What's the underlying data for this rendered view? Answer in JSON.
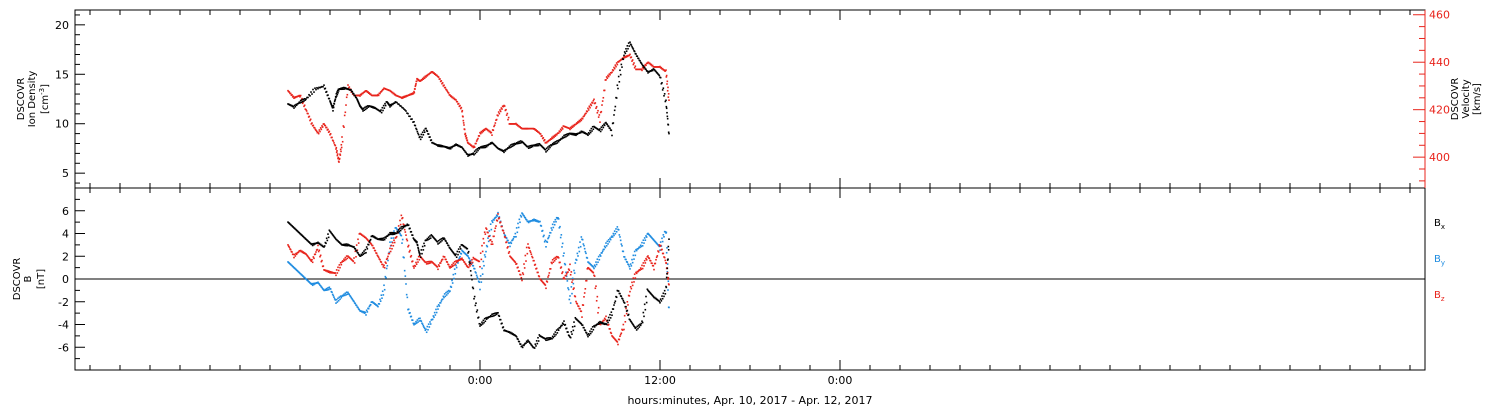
{
  "xlabel": "hours:minutes, Apr. 10, 2017 - Apr. 12, 2017",
  "colors": {
    "black": "#000000",
    "red": "#e8241c",
    "blue": "#1f8ce0"
  },
  "chart_data": [
    {
      "type": "scatter",
      "panel": "top",
      "x_unit": "hours from 2017-04-11 00:00",
      "xlim": [
        -27,
        63
      ],
      "x_ticks": [
        {
          "x": 0,
          "label": "0:00"
        },
        {
          "x": 12,
          "label": "12:00"
        },
        {
          "x": 24,
          "label": "0:00"
        }
      ],
      "ylabel": {
        "lines": [
          "DSCOVR",
          "Ion Density"
        ],
        "unit": "[cm",
        "unit_sup": "-3",
        "unit_end": "]"
      },
      "ylim": [
        3.5,
        21.5
      ],
      "y_ticks": [
        5,
        10,
        15,
        20
      ],
      "y2label": {
        "lines": [
          "DSCOVR",
          "Velocity",
          "[km/s]"
        ]
      },
      "y2lim": [
        387,
        462
      ],
      "y2_ticks": [
        400,
        420,
        440,
        460
      ],
      "series": [
        {
          "name": "Ion Density",
          "axis": "left",
          "color": "#000000",
          "x": [
            -12.8,
            -12.4,
            -12,
            -11.6,
            -11,
            -10.4,
            -10,
            -9.8,
            -9.6,
            -9.4,
            -9,
            -8.6,
            -8.2,
            -8,
            -7.8,
            -7.4,
            -7,
            -6.6,
            -6.2,
            -6,
            -5.6,
            -5,
            -4.4,
            -4,
            -3.6,
            -3.2,
            -2.8,
            -2.4,
            -2,
            -1.6,
            -1.2,
            -0.8,
            -0.4,
            0,
            0.4,
            0.8,
            1.2,
            1.6,
            2,
            2.4,
            2.8,
            3.2,
            3.6,
            4,
            4.4,
            4.8,
            5.2,
            5.6,
            6,
            6.4,
            6.8,
            7.2,
            7.6,
            8,
            8.4,
            8.8,
            9.2,
            9.6,
            10,
            10.4,
            10.8,
            11.2,
            11.6,
            12,
            12.4,
            12.6
          ],
          "y": [
            12,
            11.7,
            12.2,
            12.5,
            13.5,
            13.8,
            12.3,
            11.5,
            12.8,
            13.5,
            13.6,
            13.4,
            12.5,
            11.8,
            11.4,
            11.8,
            11.6,
            11.2,
            12.2,
            11.8,
            12.2,
            11.4,
            10.1,
            8.5,
            9.5,
            8.1,
            7.8,
            7.7,
            7.5,
            7.9,
            7.6,
            6.8,
            7,
            7.6,
            7.7,
            8.1,
            7.5,
            7.2,
            7.7,
            8,
            8.2,
            7.6,
            7.8,
            7.9,
            7.3,
            7.9,
            8.2,
            8.7,
            9,
            8.9,
            9.2,
            8.9,
            9.7,
            9.3,
            10.1,
            9.2,
            14,
            17,
            18.2,
            17,
            16,
            15.2,
            15.5,
            14.8,
            12.2,
            9
          ]
        },
        {
          "name": "Velocity",
          "axis": "right",
          "color": "#e8241c",
          "x": [
            -12.8,
            -12.4,
            -12,
            -11.6,
            -11.2,
            -10.8,
            -10.4,
            -10,
            -9.6,
            -9.4,
            -9.2,
            -8.8,
            -8.4,
            -8,
            -7.6,
            -7.2,
            -6.8,
            -6.4,
            -6,
            -5.6,
            -5.2,
            -4.8,
            -4.4,
            -4.2,
            -4,
            -3.6,
            -3.2,
            -2.8,
            -2.4,
            -2,
            -1.6,
            -1.2,
            -1,
            -0.8,
            -0.4,
            0,
            0.4,
            0.8,
            1.2,
            1.6,
            2,
            2.4,
            2.8,
            3.2,
            3.6,
            4,
            4.4,
            4.8,
            5.2,
            5.6,
            6,
            6.4,
            6.8,
            7.2,
            7.6,
            8,
            8.4,
            8.8,
            9.2,
            9.6,
            10,
            10.4,
            10.8,
            11.2,
            11.6,
            12,
            12.4,
            12.6
          ],
          "y": [
            428,
            425,
            426,
            420,
            414,
            410,
            414,
            410,
            404,
            398,
            406,
            430,
            426,
            426,
            428,
            426,
            426,
            429,
            428,
            426,
            425,
            426,
            427,
            433,
            432,
            434,
            436,
            434,
            430,
            426,
            424,
            420,
            410,
            406,
            404,
            410,
            412,
            410,
            418,
            422,
            414,
            414,
            412,
            412,
            412,
            410,
            406,
            408,
            410,
            413,
            412,
            414,
            416,
            420,
            424,
            416,
            433,
            436,
            440,
            442,
            443,
            437,
            437,
            440,
            438,
            438,
            436,
            424
          ]
        }
      ]
    },
    {
      "type": "scatter",
      "panel": "bottom",
      "x_unit": "hours from 2017-04-11 00:00",
      "xlim": [
        -27,
        63
      ],
      "ylabel": {
        "lines": [
          "DSCOVR",
          "B"
        ],
        "unit": "[nT]"
      },
      "ylim": [
        -8,
        8
      ],
      "y_ticks": [
        -6,
        -4,
        -2,
        0,
        2,
        4,
        6
      ],
      "zero_line": true,
      "legend": [
        {
          "base": "B",
          "sub": "x",
          "color": "#000000"
        },
        {
          "base": "B",
          "sub": "y",
          "color": "#1f8ce0"
        },
        {
          "base": "B",
          "sub": "z",
          "color": "#e8241c"
        }
      ],
      "series": [
        {
          "name": "Bx",
          "color": "#000000",
          "x": [
            -12.8,
            -12.4,
            -12,
            -11.6,
            -11.2,
            -10.8,
            -10.4,
            -10,
            -9.6,
            -9.2,
            -8.8,
            -8.4,
            -8,
            -7.6,
            -7.2,
            -6.8,
            -6.4,
            -6,
            -5.6,
            -5.2,
            -4.8,
            -4.4,
            -4.2,
            -4,
            -3.6,
            -3.2,
            -2.8,
            -2.4,
            -2,
            -1.6,
            -1.2,
            -0.8,
            -0.4,
            0,
            0.4,
            0.8,
            1.2,
            1.6,
            2,
            2.4,
            2.8,
            3.2,
            3.6,
            4,
            4.4,
            4.8,
            5.2,
            5.6,
            6,
            6.4,
            6.8,
            7.2,
            7.6,
            8,
            8.4,
            8.8,
            9.2,
            9.6,
            10,
            10.4,
            10.8,
            11.2,
            11.6,
            12,
            12.4,
            12.6
          ],
          "y": [
            5,
            4.5,
            4,
            3.5,
            3,
            3.2,
            2.8,
            4.2,
            3.5,
            3,
            3,
            2.8,
            2,
            2.5,
            3.8,
            3.5,
            3.5,
            4,
            4,
            4.5,
            4.8,
            3.5,
            3.2,
            2,
            3.4,
            3.8,
            3.2,
            3.6,
            2.7,
            2,
            3,
            2.6,
            -1.5,
            -4.1,
            -3.5,
            -3.2,
            -3,
            -4.5,
            -4.7,
            -5,
            -6,
            -5.4,
            -6.1,
            -5,
            -5.3,
            -5.2,
            -4.5,
            -3.8,
            -5.2,
            -3.5,
            -4,
            -5,
            -4.2,
            -3.8,
            -4,
            -3,
            -1,
            -2,
            -3.6,
            -4.4,
            -3.9,
            -1,
            -1.6,
            -2,
            -1,
            3.5
          ]
        },
        {
          "name": "By",
          "color": "#1f8ce0",
          "x": [
            -12.8,
            -12.4,
            -12,
            -11.6,
            -11.2,
            -10.8,
            -10.4,
            -10,
            -9.6,
            -9.2,
            -8.8,
            -8.4,
            -8,
            -7.6,
            -7.2,
            -6.8,
            -6.4,
            -6,
            -5.6,
            -5.2,
            -4.8,
            -4.4,
            -4,
            -3.6,
            -3.2,
            -2.8,
            -2.4,
            -2,
            -1.6,
            -1.2,
            -0.8,
            -0.4,
            0,
            0.4,
            0.8,
            1.2,
            1.6,
            2,
            2.4,
            2.8,
            3.2,
            3.6,
            4,
            4.4,
            4.8,
            5.2,
            5.6,
            6,
            6.4,
            6.8,
            7.2,
            7.6,
            8,
            8.4,
            8.8,
            9.2,
            9.6,
            10,
            10.4,
            10.8,
            11.2,
            11.6,
            12,
            12.4,
            12.6
          ],
          "y": [
            1.5,
            1,
            0.5,
            0,
            -0.5,
            -0.3,
            -1,
            -0.8,
            -2,
            -1.5,
            -1.2,
            -2,
            -2.8,
            -3,
            -2,
            -2.4,
            -1,
            3,
            4.5,
            3.7,
            -2.6,
            -4,
            -3.5,
            -4.6,
            -3.6,
            -2.5,
            -1.5,
            -1,
            1,
            2.5,
            2,
            1,
            -0.5,
            2.5,
            5,
            5.7,
            4,
            3,
            4,
            5.8,
            5,
            5.2,
            5,
            3,
            4.5,
            5.5,
            2,
            -2,
            1.6,
            3.6,
            1.5,
            1,
            2,
            3,
            3.7,
            4.5,
            2,
            1,
            2.5,
            3,
            4,
            3.4,
            2.8,
            4.4,
            -2.5
          ]
        },
        {
          "name": "Bz",
          "color": "#e8241c",
          "x": [
            -12.8,
            -12.4,
            -12,
            -11.6,
            -11.2,
            -10.8,
            -10.4,
            -10,
            -9.6,
            -9.2,
            -8.8,
            -8.4,
            -8,
            -7.6,
            -7.2,
            -6.8,
            -6.4,
            -6,
            -5.6,
            -5.2,
            -4.8,
            -4.4,
            -4,
            -3.6,
            -3.2,
            -2.8,
            -2.4,
            -2,
            -1.6,
            -1.2,
            -0.8,
            -0.4,
            0,
            0.4,
            0.8,
            1.2,
            1.6,
            2,
            2.4,
            2.8,
            3.2,
            3.6,
            4,
            4.4,
            4.8,
            5.2,
            5.6,
            6,
            6.4,
            6.8,
            7.2,
            7.6,
            8,
            8.4,
            8.8,
            9.2,
            9.6,
            10,
            10.4,
            10.8,
            11.2,
            11.6,
            12,
            12.4,
            12.6
          ],
          "y": [
            3,
            2,
            2.5,
            2.2,
            1.5,
            2.8,
            0.8,
            0.6,
            0.5,
            1.5,
            2,
            1.5,
            4,
            3.6,
            3,
            2,
            1,
            2.5,
            3.6,
            5.5,
            3,
            1,
            2,
            1.4,
            1.5,
            1,
            2,
            1,
            1.5,
            1.8,
            1,
            1.8,
            1.5,
            4.5,
            3,
            5.6,
            4,
            2,
            1.4,
            0,
            3,
            1.5,
            0,
            -0.6,
            1.5,
            2,
            0,
            1,
            -2,
            -3,
            1,
            0.5,
            -4,
            -3.4,
            -5,
            -5.6,
            -4,
            -1,
            0.5,
            1,
            2,
            1,
            3,
            1.5,
            -0.5
          ]
        }
      ]
    }
  ]
}
